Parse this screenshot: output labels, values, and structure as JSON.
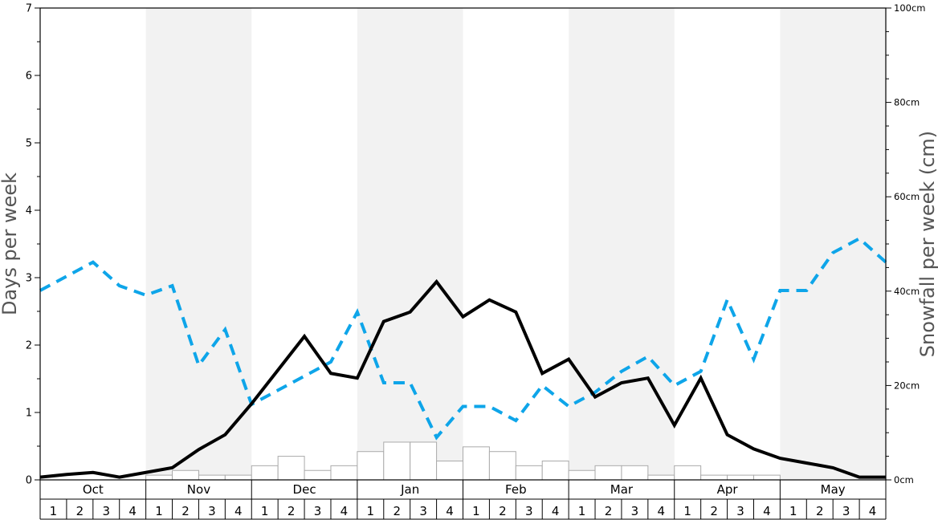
{
  "chart_data": {
    "type": "line",
    "title": "",
    "y_left_label": "Days per week",
    "y_right_label": "Snowfall per week (cm)",
    "y_left_ticks": [
      "0",
      "1",
      "2",
      "3",
      "4",
      "5",
      "6",
      "7"
    ],
    "y_left_range": [
      0,
      7
    ],
    "y_right_ticks": [
      "0cm",
      "20cm",
      "40cm",
      "60cm",
      "80cm",
      "100cm"
    ],
    "y_right_range": [
      0,
      100
    ],
    "months": [
      "Oct",
      "Nov",
      "Dec",
      "Jan",
      "Feb",
      "Mar",
      "Apr",
      "May"
    ],
    "week_labels": [
      "1",
      "2",
      "3",
      "4"
    ],
    "series": [
      {
        "style": "solid-black-line",
        "axis": "left",
        "color": "#000000",
        "values": [
          0.04,
          0.08,
          0.11,
          0.04,
          0.11,
          0.18,
          0.45,
          0.67,
          1.13,
          1.63,
          2.13,
          1.58,
          1.51,
          2.35,
          2.49,
          2.94,
          2.42,
          2.67,
          2.49,
          1.58,
          1.79,
          1.23,
          1.44,
          1.51,
          0.81,
          1.51,
          0.67,
          0.46,
          0.32,
          0.25,
          0.18,
          0.04,
          0.04
        ]
      },
      {
        "style": "dashed-blue-line",
        "axis": "left",
        "color": "#0ea5e9",
        "values": [
          2.81,
          3.02,
          3.23,
          2.88,
          2.74,
          2.88,
          1.7,
          2.23,
          1.12,
          1.33,
          1.54,
          1.75,
          2.49,
          1.44,
          1.44,
          0.63,
          1.09,
          1.09,
          0.88,
          1.4,
          1.09,
          1.3,
          1.61,
          1.83,
          1.4,
          1.61,
          2.67,
          1.79,
          2.81,
          2.81,
          3.37,
          3.58,
          3.23
        ]
      },
      {
        "style": "bars",
        "axis": "right",
        "color": "#aaaaaa",
        "values": [
          0,
          0,
          0,
          0,
          1,
          2,
          1,
          1,
          3,
          5,
          2,
          3,
          6,
          8,
          8,
          4,
          7,
          6,
          3,
          4,
          2,
          3,
          3,
          1,
          3,
          1,
          1,
          1,
          0,
          0,
          0,
          0
        ]
      }
    ],
    "grid": false,
    "legend": "none"
  }
}
